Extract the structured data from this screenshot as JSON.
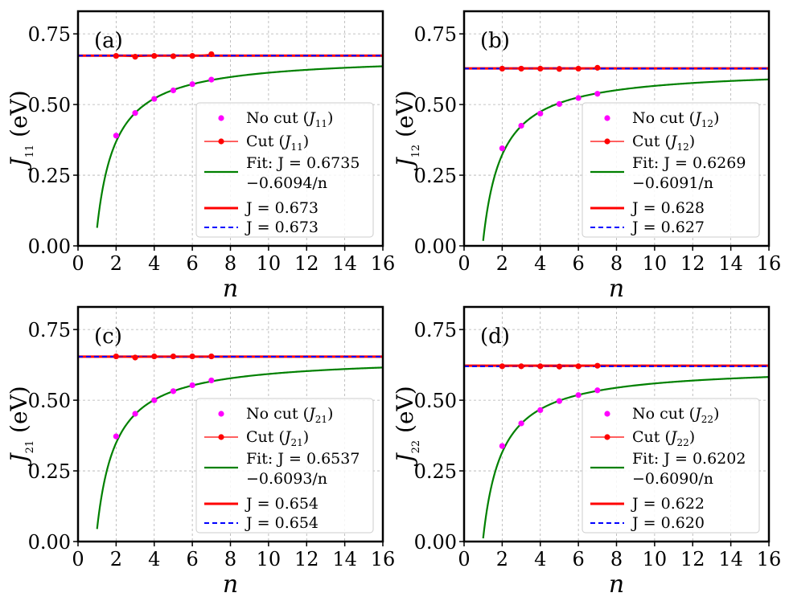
{
  "chart_data": [
    {
      "type": "line",
      "panel": "(a)",
      "xlabel": "n",
      "ylabel_sym": "J",
      "ylabel_sub": "11",
      "ylabel_unit": " (eV)",
      "xlim": [
        0,
        16
      ],
      "ylim": [
        0,
        0.83
      ],
      "xticks": [
        "0",
        "2",
        "4",
        "6",
        "8",
        "10",
        "12",
        "14",
        "16"
      ],
      "yticks": [
        "0.00",
        "0.25",
        "0.50",
        "0.75"
      ],
      "series": [
        {
          "name": "No cut (J11)",
          "kind": "points",
          "color": "#ff00ff",
          "x": [
            2,
            3,
            4,
            5,
            6,
            7
          ],
          "y": [
            0.39,
            0.47,
            0.52,
            0.55,
            0.572,
            0.588
          ]
        },
        {
          "name": "Cut (J11)",
          "kind": "line-markers",
          "color": "#ff0000",
          "x": [
            2,
            3,
            4,
            5,
            6,
            7
          ],
          "y": [
            0.672,
            0.669,
            0.672,
            0.671,
            0.672,
            0.678
          ]
        },
        {
          "name": "Fit",
          "kind": "fit",
          "color": "#008000",
          "a": 0.6735,
          "b": 0.6094
        },
        {
          "name": "J = 0.673",
          "kind": "hline",
          "color": "#ff0000",
          "style": "solid",
          "y": 0.673
        },
        {
          "name": "J = 0.673",
          "kind": "hline",
          "color": "#0000ff",
          "style": "dashed",
          "y": 0.673
        }
      ],
      "legend": {
        "nocut_label": "No cut (",
        "nocut_sub": "11",
        "cut_label": "Cut (",
        "cut_sub": "11",
        "fit_line1": "Fit: J = 0.6735",
        "fit_line2": "−0.6094/n",
        "red_label": "J = 0.673",
        "blue_label": "J = 0.673"
      }
    },
    {
      "type": "line",
      "panel": "(b)",
      "xlabel": "n",
      "ylabel_sym": "J",
      "ylabel_sub": "12",
      "ylabel_unit": " (eV)",
      "xlim": [
        0,
        16
      ],
      "ylim": [
        0,
        0.83
      ],
      "xticks": [
        "0",
        "2",
        "4",
        "6",
        "8",
        "10",
        "12",
        "14",
        "16"
      ],
      "yticks": [
        "0.00",
        "0.25",
        "0.50",
        "0.75"
      ],
      "series": [
        {
          "name": "No cut (J12)",
          "kind": "points",
          "color": "#ff00ff",
          "x": [
            2,
            3,
            4,
            5,
            6,
            7
          ],
          "y": [
            0.345,
            0.425,
            0.468,
            0.502,
            0.523,
            0.538
          ]
        },
        {
          "name": "Cut (J12)",
          "kind": "line-markers",
          "color": "#ff0000",
          "x": [
            2,
            3,
            4,
            5,
            6,
            7
          ],
          "y": [
            0.627,
            0.627,
            0.627,
            0.626,
            0.627,
            0.63
          ]
        },
        {
          "name": "Fit",
          "kind": "fit",
          "color": "#008000",
          "a": 0.6269,
          "b": 0.6091
        },
        {
          "name": "J = 0.628",
          "kind": "hline",
          "color": "#ff0000",
          "style": "solid",
          "y": 0.628
        },
        {
          "name": "J = 0.627",
          "kind": "hline",
          "color": "#0000ff",
          "style": "dashed",
          "y": 0.627
        }
      ],
      "legend": {
        "nocut_label": "No cut (",
        "nocut_sub": "12",
        "cut_label": "Cut (",
        "cut_sub": "12",
        "fit_line1": "Fit: J = 0.6269",
        "fit_line2": "−0.6091/n",
        "red_label": "J = 0.628",
        "blue_label": "J = 0.627"
      }
    },
    {
      "type": "line",
      "panel": "(c)",
      "xlabel": "n",
      "ylabel_sym": "J",
      "ylabel_sub": "21",
      "ylabel_unit": " (eV)",
      "xlim": [
        0,
        16
      ],
      "ylim": [
        0,
        0.83
      ],
      "xticks": [
        "0",
        "2",
        "4",
        "6",
        "8",
        "10",
        "12",
        "14",
        "16"
      ],
      "yticks": [
        "0.00",
        "0.25",
        "0.50",
        "0.75"
      ],
      "series": [
        {
          "name": "No cut (J21)",
          "kind": "points",
          "color": "#ff00ff",
          "x": [
            2,
            3,
            4,
            5,
            6,
            7
          ],
          "y": [
            0.372,
            0.452,
            0.5,
            0.532,
            0.553,
            0.57
          ]
        },
        {
          "name": "Cut (J21)",
          "kind": "line-markers",
          "color": "#ff0000",
          "x": [
            2,
            3,
            4,
            5,
            6,
            7
          ],
          "y": [
            0.655,
            0.651,
            0.655,
            0.655,
            0.655,
            0.655
          ]
        },
        {
          "name": "Fit",
          "kind": "fit",
          "color": "#008000",
          "a": 0.6537,
          "b": 0.6093
        },
        {
          "name": "J = 0.654",
          "kind": "hline",
          "color": "#ff0000",
          "style": "solid",
          "y": 0.654
        },
        {
          "name": "J = 0.654",
          "kind": "hline",
          "color": "#0000ff",
          "style": "dashed",
          "y": 0.654
        }
      ],
      "legend": {
        "nocut_label": "No cut (",
        "nocut_sub": "21",
        "cut_label": "Cut (",
        "cut_sub": "21",
        "fit_line1": "Fit: J = 0.6537",
        "fit_line2": "−0.6093/n",
        "red_label": "J = 0.654",
        "blue_label": "J = 0.654"
      }
    },
    {
      "type": "line",
      "panel": "(d)",
      "xlabel": "n",
      "ylabel_sym": "J",
      "ylabel_sub": "22",
      "ylabel_unit": " (eV)",
      "xlim": [
        0,
        16
      ],
      "ylim": [
        0,
        0.83
      ],
      "xticks": [
        "0",
        "2",
        "4",
        "6",
        "8",
        "10",
        "12",
        "14",
        "16"
      ],
      "yticks": [
        "0.00",
        "0.25",
        "0.50",
        "0.75"
      ],
      "series": [
        {
          "name": "No cut (J22)",
          "kind": "points",
          "color": "#ff00ff",
          "x": [
            2,
            3,
            4,
            5,
            6,
            7
          ],
          "y": [
            0.338,
            0.418,
            0.465,
            0.497,
            0.518,
            0.535
          ]
        },
        {
          "name": "Cut (J22)",
          "kind": "line-markers",
          "color": "#ff0000",
          "x": [
            2,
            3,
            4,
            5,
            6,
            7
          ],
          "y": [
            0.62,
            0.62,
            0.62,
            0.619,
            0.62,
            0.622
          ]
        },
        {
          "name": "Fit",
          "kind": "fit",
          "color": "#008000",
          "a": 0.6202,
          "b": 0.609
        },
        {
          "name": "J = 0.622",
          "kind": "hline",
          "color": "#ff0000",
          "style": "solid",
          "y": 0.622
        },
        {
          "name": "J = 0.620",
          "kind": "hline",
          "color": "#0000ff",
          "style": "dashed",
          "y": 0.62
        }
      ],
      "legend": {
        "nocut_label": "No cut (",
        "nocut_sub": "22",
        "cut_label": "Cut (",
        "cut_sub": "22",
        "fit_line1": "Fit: J = 0.6202",
        "fit_line2": "−0.6090/n",
        "red_label": "J = 0.622",
        "blue_label": "J = 0.620"
      }
    }
  ]
}
